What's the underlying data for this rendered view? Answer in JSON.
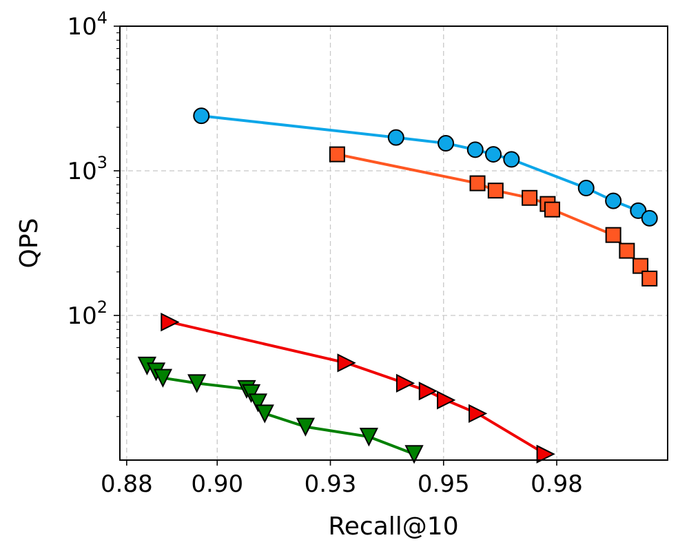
{
  "chart_data": {
    "type": "line",
    "title": "",
    "xlabel": "Recall@10",
    "ylabel": "QPS",
    "xlim": [
      0.8785,
      0.9995
    ],
    "ylim": [
      10,
      10000
    ],
    "yscale": "log",
    "grid": true,
    "xticks": [
      {
        "value": 0.88,
        "label": "0.88"
      },
      {
        "value": 0.9,
        "label": "0.90"
      },
      {
        "value": 0.925,
        "label": "0.93"
      },
      {
        "value": 0.95,
        "label": "0.95"
      },
      {
        "value": 0.975,
        "label": "0.98"
      }
    ],
    "yticks": [
      {
        "value": 100,
        "base": "10",
        "exp": "2"
      },
      {
        "value": 1000,
        "base": "10",
        "exp": "3"
      },
      {
        "value": 10000,
        "base": "10",
        "exp": "4"
      }
    ],
    "series": [
      {
        "marker": "circle",
        "color": "#0DA6E8",
        "points": [
          [
            0.8965,
            2400
          ],
          [
            0.9395,
            1700
          ],
          [
            0.9505,
            1550
          ],
          [
            0.957,
            1400
          ],
          [
            0.961,
            1300
          ],
          [
            0.965,
            1200
          ],
          [
            0.9815,
            760
          ],
          [
            0.9875,
            620
          ],
          [
            0.993,
            530
          ],
          [
            0.9955,
            470
          ]
        ]
      },
      {
        "marker": "square",
        "color": "#FF5722",
        "points": [
          [
            0.9265,
            1300
          ],
          [
            0.9575,
            820
          ],
          [
            0.9615,
            730
          ],
          [
            0.969,
            650
          ],
          [
            0.973,
            590
          ],
          [
            0.974,
            540
          ],
          [
            0.9875,
            360
          ],
          [
            0.9905,
            280
          ],
          [
            0.9935,
            220
          ],
          [
            0.9955,
            180
          ]
        ]
      },
      {
        "marker": "triangle-right",
        "color": "#F00000",
        "points": [
          [
            0.8895,
            90
          ],
          [
            0.9285,
            47
          ],
          [
            0.9415,
            34
          ],
          [
            0.9465,
            30
          ],
          [
            0.9505,
            26
          ],
          [
            0.9575,
            21
          ],
          [
            0.9725,
            11
          ]
        ]
      },
      {
        "marker": "triangle-down",
        "color": "#008000",
        "points": [
          [
            0.8845,
            45
          ],
          [
            0.8865,
            41
          ],
          [
            0.888,
            37
          ],
          [
            0.8955,
            34
          ],
          [
            0.9065,
            31
          ],
          [
            0.9075,
            29
          ],
          [
            0.909,
            25
          ],
          [
            0.9105,
            21
          ],
          [
            0.9195,
            17
          ],
          [
            0.9335,
            14.5
          ],
          [
            0.9435,
            11
          ]
        ]
      }
    ]
  }
}
